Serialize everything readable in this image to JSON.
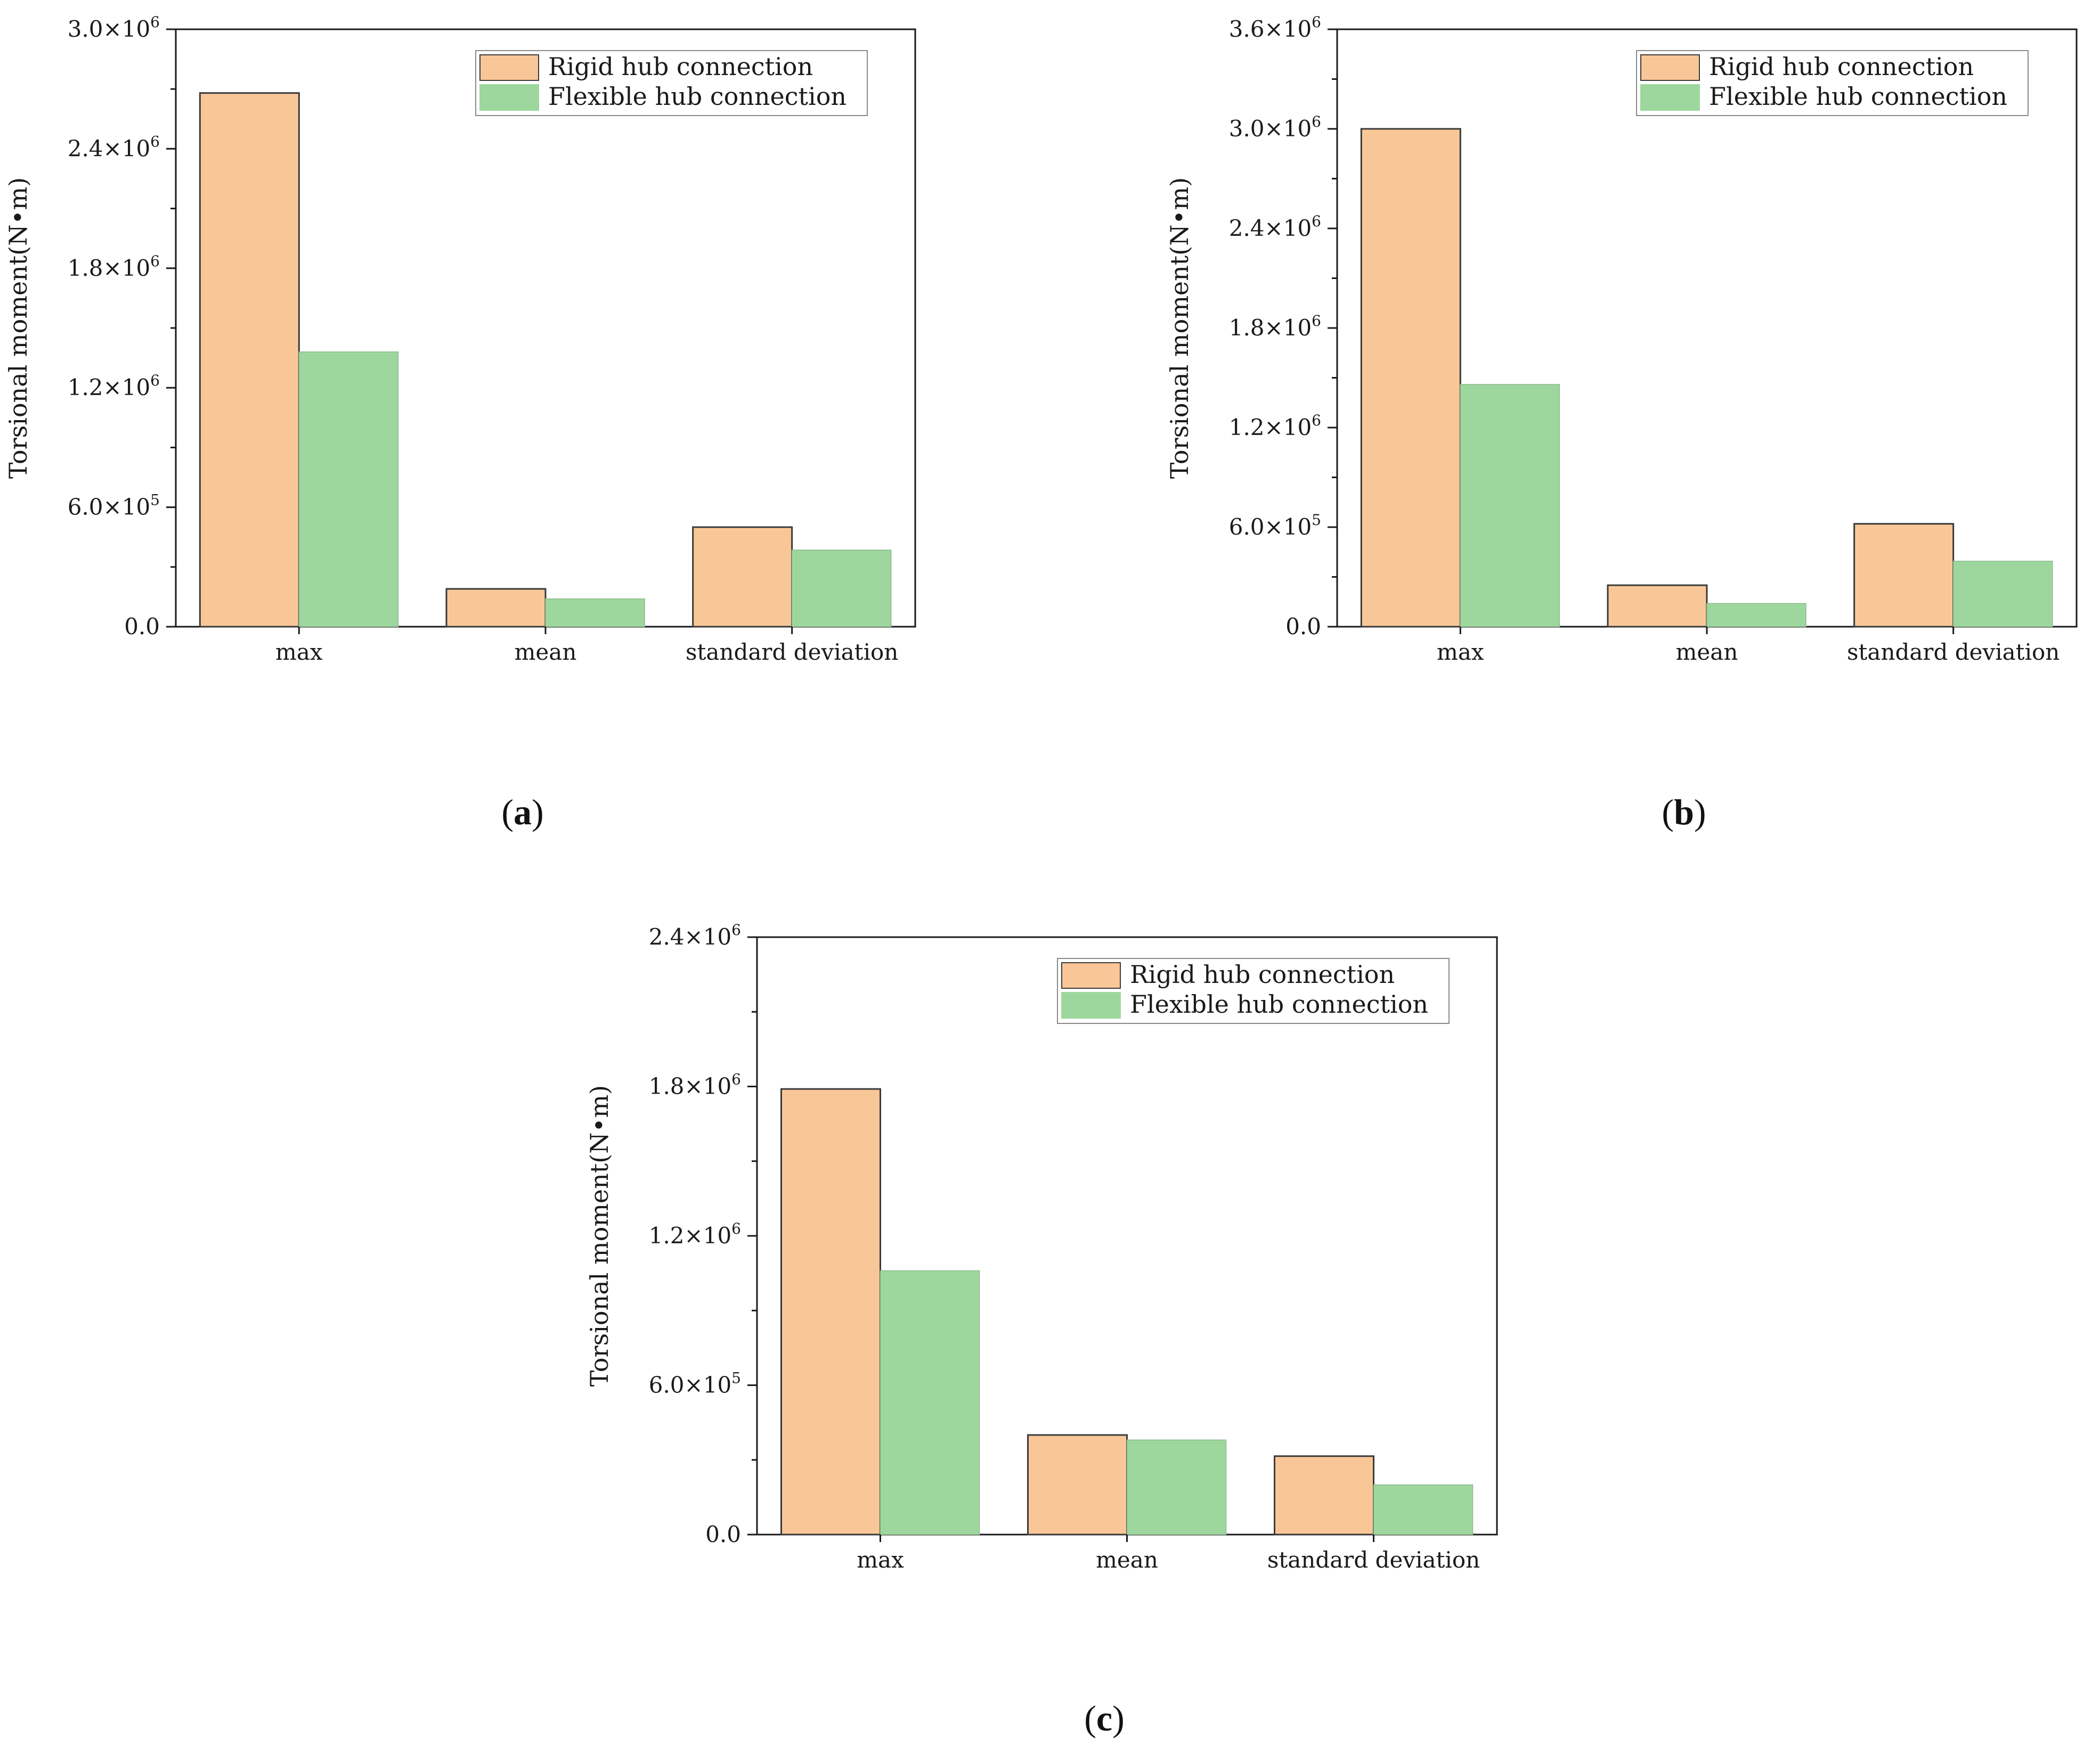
{
  "colors": {
    "rigid": "#f9c797",
    "flexible": "#9dd79d",
    "bar_stroke": "#3a3a3a",
    "axis": "#1a1a1a"
  },
  "chart_data": [
    {
      "type": "bar",
      "panel_label": "(a)",
      "categories": [
        "max",
        "mean",
        "standard deviation"
      ],
      "series": [
        {
          "name": "Rigid hub connection",
          "values": [
            2680000,
            190000,
            500000
          ]
        },
        {
          "name": "Flexible hub connection",
          "values": [
            1380000,
            140000,
            385000
          ]
        }
      ],
      "ylabel": "Torsional moment(N•m)",
      "ylim": [
        0,
        3000000
      ],
      "yticks": [
        {
          "value": 0,
          "label": "0.0"
        },
        {
          "value": 600000,
          "mantissa": "6.0",
          "exp": "5"
        },
        {
          "value": 1200000,
          "mantissa": "1.2",
          "exp": "6"
        },
        {
          "value": 1800000,
          "mantissa": "1.8",
          "exp": "6"
        },
        {
          "value": 2400000,
          "mantissa": "2.4",
          "exp": "6"
        },
        {
          "value": 3000000,
          "mantissa": "3.0",
          "exp": "6"
        }
      ],
      "minor_step": 300000,
      "legend": "top-right"
    },
    {
      "type": "bar",
      "panel_label": "(b)",
      "categories": [
        "max",
        "mean",
        "standard deviation"
      ],
      "series": [
        {
          "name": "Rigid hub connection",
          "values": [
            3000000,
            250000,
            620000
          ]
        },
        {
          "name": "Flexible hub connection",
          "values": [
            1460000,
            140000,
            395000
          ]
        }
      ],
      "ylabel": "Torsional moment(N•m)",
      "ylim": [
        0,
        3600000
      ],
      "yticks": [
        {
          "value": 0,
          "label": "0.0"
        },
        {
          "value": 600000,
          "mantissa": "6.0",
          "exp": "5"
        },
        {
          "value": 1200000,
          "mantissa": "1.2",
          "exp": "6"
        },
        {
          "value": 1800000,
          "mantissa": "1.8",
          "exp": "6"
        },
        {
          "value": 2400000,
          "mantissa": "2.4",
          "exp": "6"
        },
        {
          "value": 3000000,
          "mantissa": "3.0",
          "exp": "6"
        },
        {
          "value": 3600000,
          "mantissa": "3.6",
          "exp": "6"
        }
      ],
      "minor_step": 300000,
      "legend": "top-right"
    },
    {
      "type": "bar",
      "panel_label": "(c)",
      "categories": [
        "max",
        "mean",
        "standard deviation"
      ],
      "series": [
        {
          "name": "Rigid hub connection",
          "values": [
            1790000,
            400000,
            315000
          ]
        },
        {
          "name": "Flexible hub connection",
          "values": [
            1060000,
            380000,
            200000
          ]
        }
      ],
      "ylabel": "Torsional moment(N•m)",
      "ylim": [
        0,
        2400000
      ],
      "yticks": [
        {
          "value": 0,
          "label": "0.0"
        },
        {
          "value": 600000,
          "mantissa": "6.0",
          "exp": "5"
        },
        {
          "value": 1200000,
          "mantissa": "1.2",
          "exp": "6"
        },
        {
          "value": 1800000,
          "mantissa": "1.8",
          "exp": "6"
        },
        {
          "value": 2400000,
          "mantissa": "2.4",
          "exp": "6"
        }
      ],
      "minor_step": 300000,
      "legend": "top-right"
    }
  ]
}
